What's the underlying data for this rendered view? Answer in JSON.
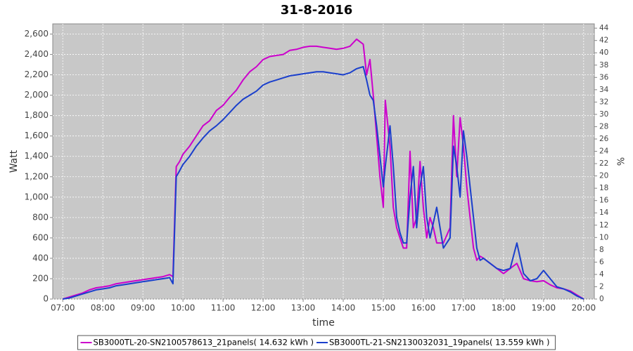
{
  "chart_data": {
    "type": "line",
    "title": "31-8-2016",
    "x_label": "time",
    "y_label": "Watt",
    "y2_label": "%",
    "x": [
      "07:00",
      "07:10",
      "07:20",
      "07:30",
      "07:40",
      "07:50",
      "08:00",
      "08:10",
      "08:20",
      "08:30",
      "08:40",
      "08:50",
      "09:00",
      "09:10",
      "09:20",
      "09:30",
      "09:40",
      "09:45",
      "09:50",
      "09:55",
      "10:00",
      "10:10",
      "10:20",
      "10:30",
      "10:40",
      "10:50",
      "11:00",
      "11:10",
      "11:20",
      "11:30",
      "11:40",
      "11:50",
      "12:00",
      "12:10",
      "12:20",
      "12:30",
      "12:40",
      "12:50",
      "13:00",
      "13:10",
      "13:20",
      "13:30",
      "13:40",
      "13:50",
      "14:00",
      "14:10",
      "14:20",
      "14:30",
      "14:35",
      "14:40",
      "14:45",
      "14:50",
      "14:55",
      "15:00",
      "15:03",
      "15:10",
      "15:15",
      "15:20",
      "15:25",
      "15:30",
      "15:35",
      "15:40",
      "15:45",
      "15:50",
      "15:55",
      "16:00",
      "16:05",
      "16:10",
      "16:15",
      "16:20",
      "16:30",
      "16:40",
      "16:45",
      "16:50",
      "16:55",
      "17:00",
      "17:05",
      "17:10",
      "17:15",
      "17:20",
      "17:25",
      "17:30",
      "17:40",
      "17:50",
      "18:00",
      "18:10",
      "18:20",
      "18:30",
      "18:40",
      "18:50",
      "19:00",
      "19:10",
      "19:20",
      "19:30",
      "19:40",
      "19:50",
      "20:00"
    ],
    "series": [
      {
        "name": "SB3000TL-20-SN2100578613_21panels( 14.632 kWh )",
        "color": "#cc00cc",
        "values": [
          0,
          20,
          40,
          60,
          90,
          110,
          120,
          130,
          150,
          160,
          170,
          180,
          190,
          200,
          210,
          220,
          240,
          220,
          1300,
          1350,
          1420,
          1500,
          1600,
          1700,
          1750,
          1850,
          1900,
          1980,
          2050,
          2150,
          2230,
          2280,
          2350,
          2380,
          2390,
          2400,
          2440,
          2450,
          2470,
          2480,
          2480,
          2470,
          2460,
          2450,
          2460,
          2480,
          2550,
          2500,
          2200,
          2350,
          2000,
          1600,
          1200,
          900,
          1950,
          1500,
          900,
          700,
          600,
          500,
          500,
          1450,
          700,
          800,
          1350,
          900,
          600,
          800,
          700,
          550,
          550,
          700,
          1800,
          1200,
          1780,
          1500,
          1100,
          800,
          500,
          380,
          420,
          400,
          350,
          300,
          250,
          300,
          350,
          200,
          180,
          170,
          180,
          140,
          110,
          100,
          80,
          40,
          0
        ]
      },
      {
        "name": "SB3000TL-21-SN2130032031_19panels( 13.559 kWh )",
        "color": "#1a3fcc",
        "values": [
          0,
          10,
          30,
          50,
          70,
          90,
          100,
          110,
          130,
          140,
          150,
          160,
          170,
          180,
          190,
          200,
          210,
          150,
          1200,
          1260,
          1320,
          1400,
          1500,
          1580,
          1650,
          1700,
          1760,
          1830,
          1900,
          1960,
          2000,
          2040,
          2100,
          2130,
          2150,
          2170,
          2190,
          2200,
          2210,
          2220,
          2230,
          2230,
          2220,
          2210,
          2200,
          2220,
          2260,
          2280,
          2150,
          2000,
          1950,
          1700,
          1400,
          1100,
          1300,
          1700,
          1300,
          800,
          650,
          550,
          550,
          1000,
          1300,
          700,
          1100,
          1300,
          800,
          600,
          750,
          900,
          500,
          600,
          1500,
          1300,
          1000,
          1650,
          1400,
          1100,
          800,
          500,
          380,
          400,
          350,
          300,
          280,
          300,
          550,
          250,
          180,
          200,
          280,
          200,
          120,
          100,
          70,
          30,
          0
        ]
      }
    ],
    "xlim": [
      "06:45",
      "20:16"
    ],
    "xticks": [
      "07:00",
      "08:00",
      "09:00",
      "10:00",
      "11:00",
      "12:00",
      "13:00",
      "14:00",
      "15:00",
      "16:00",
      "17:00",
      "18:00",
      "19:00",
      "20:00"
    ],
    "ylim": [
      0,
      2700
    ],
    "yticks": [
      0,
      200,
      400,
      600,
      800,
      {
        "value": 1000,
        "label": "1,000"
      },
      {
        "value": 1200,
        "label": "1,200"
      },
      {
        "value": 1400,
        "label": "1,400"
      },
      {
        "value": 1600,
        "label": "1,600"
      },
      {
        "value": 1800,
        "label": "1,800"
      },
      {
        "value": 2000,
        "label": "2,000"
      },
      {
        "value": 2200,
        "label": "2,200"
      },
      {
        "value": 2400,
        "label": "2,400"
      },
      {
        "value": 2600,
        "label": "2,600"
      }
    ],
    "y2lim": [
      0,
      44.7
    ],
    "y2ticks": [
      0,
      2,
      4,
      6,
      8,
      10,
      12,
      14,
      16,
      18,
      20,
      22,
      24,
      26,
      28,
      30,
      32,
      34,
      36,
      38,
      40,
      42,
      44
    ],
    "grid": true,
    "legend": "bottom"
  }
}
